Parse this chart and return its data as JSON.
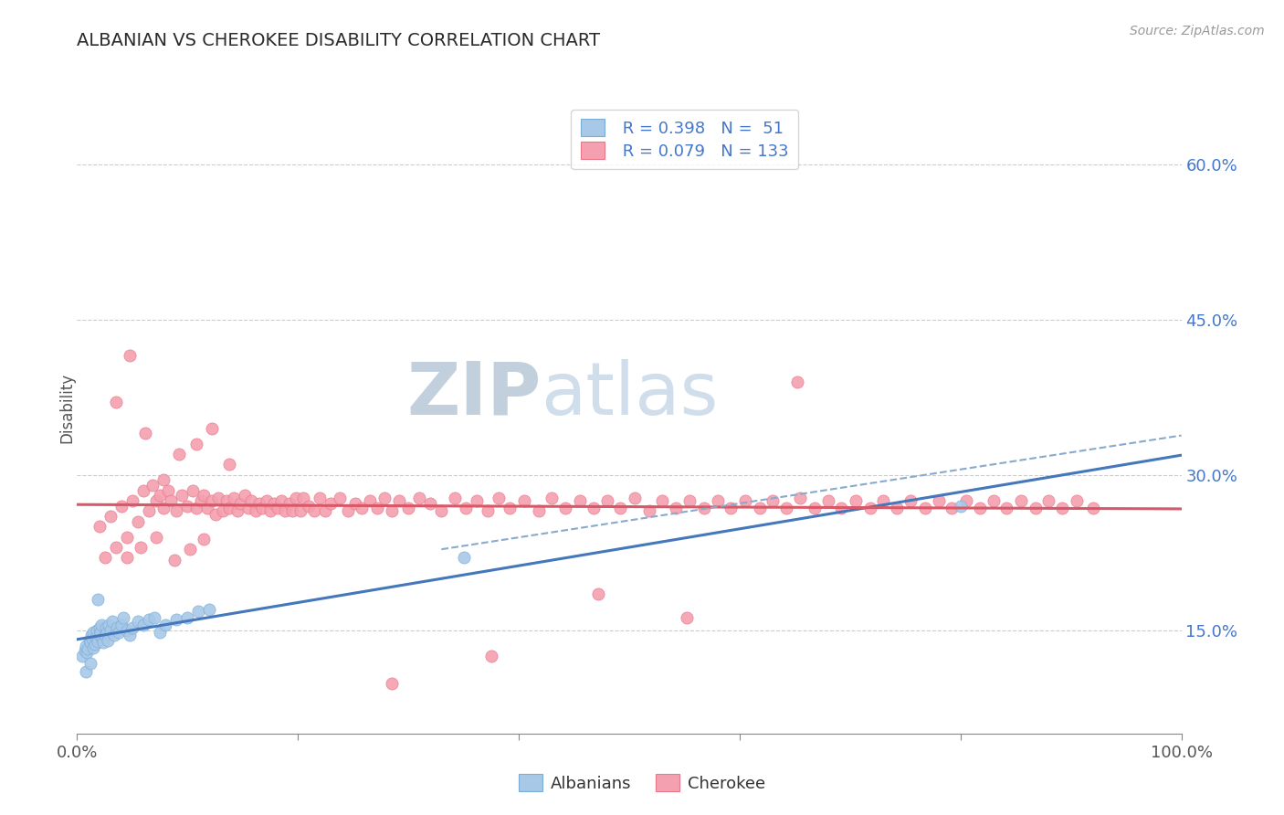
{
  "title": "ALBANIAN VS CHEROKEE DISABILITY CORRELATION CHART",
  "source_text": "Source: ZipAtlas.com",
  "ylabel": "Disability",
  "y_ticks": [
    0.15,
    0.3,
    0.45,
    0.6
  ],
  "y_tick_labels": [
    "15.0%",
    "30.0%",
    "45.0%",
    "60.0%"
  ],
  "x_min": 0.0,
  "x_max": 1.0,
  "y_min": 0.05,
  "y_max": 0.68,
  "albanian_R": 0.398,
  "albanian_N": 51,
  "cherokee_R": 0.079,
  "cherokee_N": 133,
  "albanian_color": "#a8c8e8",
  "albanian_edge_color": "#7aadd6",
  "cherokee_color": "#f4a0b0",
  "cherokee_edge_color": "#e87888",
  "regression_blue_color": "#4477bb",
  "regression_pink_color": "#d85868",
  "dashed_line_color": "#88aacc",
  "watermark_color": "#ccd8e8",
  "background_color": "#ffffff",
  "grid_color": "#cccccc",
  "albanian_x": [
    0.005,
    0.007,
    0.008,
    0.009,
    0.01,
    0.011,
    0.012,
    0.013,
    0.014,
    0.015,
    0.015,
    0.016,
    0.017,
    0.018,
    0.019,
    0.02,
    0.02,
    0.021,
    0.022,
    0.023,
    0.024,
    0.025,
    0.026,
    0.027,
    0.028,
    0.029,
    0.03,
    0.032,
    0.034,
    0.036,
    0.038,
    0.04,
    0.042,
    0.045,
    0.048,
    0.05,
    0.055,
    0.06,
    0.065,
    0.07,
    0.075,
    0.08,
    0.09,
    0.1,
    0.11,
    0.12,
    0.008,
    0.012,
    0.019,
    0.35,
    0.8
  ],
  "albanian_y": [
    0.125,
    0.13,
    0.135,
    0.128,
    0.132,
    0.14,
    0.138,
    0.145,
    0.142,
    0.148,
    0.133,
    0.136,
    0.143,
    0.15,
    0.139,
    0.145,
    0.152,
    0.148,
    0.155,
    0.142,
    0.138,
    0.145,
    0.152,
    0.148,
    0.14,
    0.155,
    0.15,
    0.158,
    0.145,
    0.152,
    0.148,
    0.155,
    0.162,
    0.15,
    0.145,
    0.152,
    0.158,
    0.155,
    0.16,
    0.162,
    0.148,
    0.155,
    0.16,
    0.162,
    0.168,
    0.17,
    0.11,
    0.118,
    0.18,
    0.22,
    0.27
  ],
  "cherokee_x": [
    0.02,
    0.025,
    0.03,
    0.035,
    0.04,
    0.045,
    0.05,
    0.055,
    0.06,
    0.065,
    0.068,
    0.072,
    0.075,
    0.078,
    0.082,
    0.085,
    0.09,
    0.095,
    0.1,
    0.105,
    0.108,
    0.112,
    0.115,
    0.118,
    0.122,
    0.125,
    0.128,
    0.132,
    0.135,
    0.138,
    0.142,
    0.145,
    0.148,
    0.152,
    0.155,
    0.158,
    0.162,
    0.165,
    0.168,
    0.172,
    0.175,
    0.178,
    0.182,
    0.185,
    0.188,
    0.192,
    0.195,
    0.198,
    0.202,
    0.205,
    0.21,
    0.215,
    0.22,
    0.225,
    0.23,
    0.238,
    0.245,
    0.252,
    0.258,
    0.265,
    0.272,
    0.278,
    0.285,
    0.292,
    0.3,
    0.31,
    0.32,
    0.33,
    0.342,
    0.352,
    0.362,
    0.372,
    0.382,
    0.392,
    0.405,
    0.418,
    0.43,
    0.442,
    0.455,
    0.468,
    0.48,
    0.492,
    0.505,
    0.518,
    0.53,
    0.542,
    0.555,
    0.568,
    0.58,
    0.592,
    0.605,
    0.618,
    0.63,
    0.642,
    0.655,
    0.668,
    0.68,
    0.692,
    0.705,
    0.718,
    0.73,
    0.742,
    0.755,
    0.768,
    0.78,
    0.792,
    0.805,
    0.818,
    0.83,
    0.842,
    0.855,
    0.868,
    0.88,
    0.892,
    0.905,
    0.92,
    0.035,
    0.048,
    0.062,
    0.078,
    0.092,
    0.108,
    0.122,
    0.138,
    0.045,
    0.058,
    0.072,
    0.088,
    0.102,
    0.115,
    0.472,
    0.552,
    0.375,
    0.285,
    0.652
  ],
  "cherokee_y": [
    0.25,
    0.22,
    0.26,
    0.23,
    0.27,
    0.24,
    0.275,
    0.255,
    0.285,
    0.265,
    0.29,
    0.275,
    0.28,
    0.268,
    0.285,
    0.275,
    0.265,
    0.28,
    0.27,
    0.285,
    0.268,
    0.275,
    0.28,
    0.268,
    0.275,
    0.262,
    0.278,
    0.265,
    0.275,
    0.268,
    0.278,
    0.265,
    0.272,
    0.28,
    0.268,
    0.275,
    0.265,
    0.272,
    0.268,
    0.275,
    0.265,
    0.272,
    0.268,
    0.275,
    0.265,
    0.272,
    0.265,
    0.278,
    0.265,
    0.278,
    0.27,
    0.265,
    0.278,
    0.265,
    0.272,
    0.278,
    0.265,
    0.272,
    0.268,
    0.275,
    0.268,
    0.278,
    0.265,
    0.275,
    0.268,
    0.278,
    0.272,
    0.265,
    0.278,
    0.268,
    0.275,
    0.265,
    0.278,
    0.268,
    0.275,
    0.265,
    0.278,
    0.268,
    0.275,
    0.268,
    0.275,
    0.268,
    0.278,
    0.265,
    0.275,
    0.268,
    0.275,
    0.268,
    0.275,
    0.268,
    0.275,
    0.268,
    0.275,
    0.268,
    0.278,
    0.268,
    0.275,
    0.268,
    0.275,
    0.268,
    0.275,
    0.268,
    0.275,
    0.268,
    0.275,
    0.268,
    0.275,
    0.268,
    0.275,
    0.268,
    0.275,
    0.268,
    0.275,
    0.268,
    0.275,
    0.268,
    0.37,
    0.415,
    0.34,
    0.295,
    0.32,
    0.33,
    0.345,
    0.31,
    0.22,
    0.23,
    0.24,
    0.218,
    0.228,
    0.238,
    0.185,
    0.162,
    0.125,
    0.098,
    0.39
  ]
}
